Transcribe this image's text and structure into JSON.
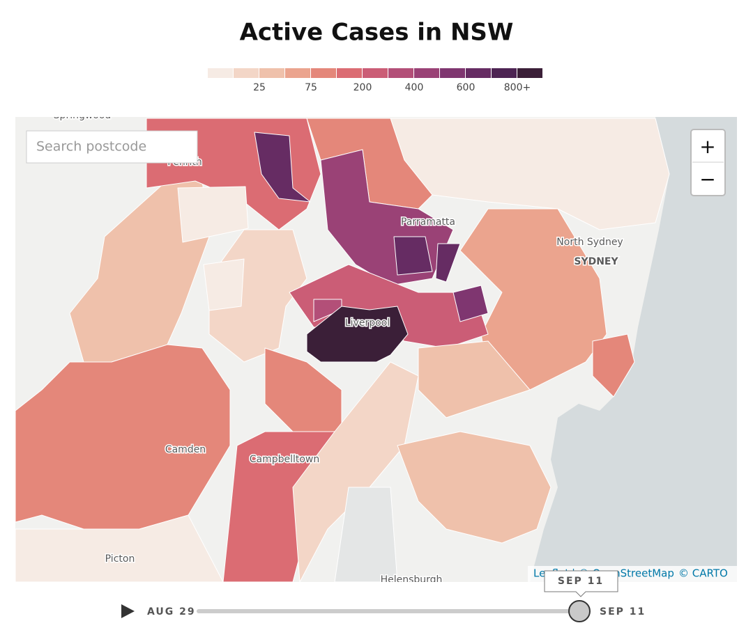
{
  "title": "Active Cases in NSW",
  "legend": {
    "colors": [
      "#f6ebe4",
      "#f3d6c7",
      "#efc1ab",
      "#eba48e",
      "#e4877a",
      "#db6c73",
      "#cb5d76",
      "#b34f78",
      "#9a4276",
      "#7f3670",
      "#662c63",
      "#4d2453",
      "#3b1f38"
    ],
    "labels": [
      "25",
      "75",
      "200",
      "400",
      "600",
      "800+"
    ]
  },
  "search": {
    "placeholder": "Search postcode"
  },
  "zoom": {
    "in": "+",
    "out": "−"
  },
  "places": [
    {
      "label": "Springwood"
    },
    {
      "label": "Penrith"
    },
    {
      "label": "Parramatta"
    },
    {
      "label": "North Sydney"
    },
    {
      "label": "SYDNEY"
    },
    {
      "label": "Liverpool"
    },
    {
      "label": "Camden"
    },
    {
      "label": "Campbelltown"
    },
    {
      "label": "Picton"
    },
    {
      "label": "Helensburgh"
    }
  ],
  "attribution": {
    "leaflet": "Leaflet",
    "osm": "| © OpenStreetMap",
    "carto": "© CARTO"
  },
  "timeline": {
    "start": "AUG 29",
    "end": "SEP 11",
    "current": "SEP 11"
  }
}
